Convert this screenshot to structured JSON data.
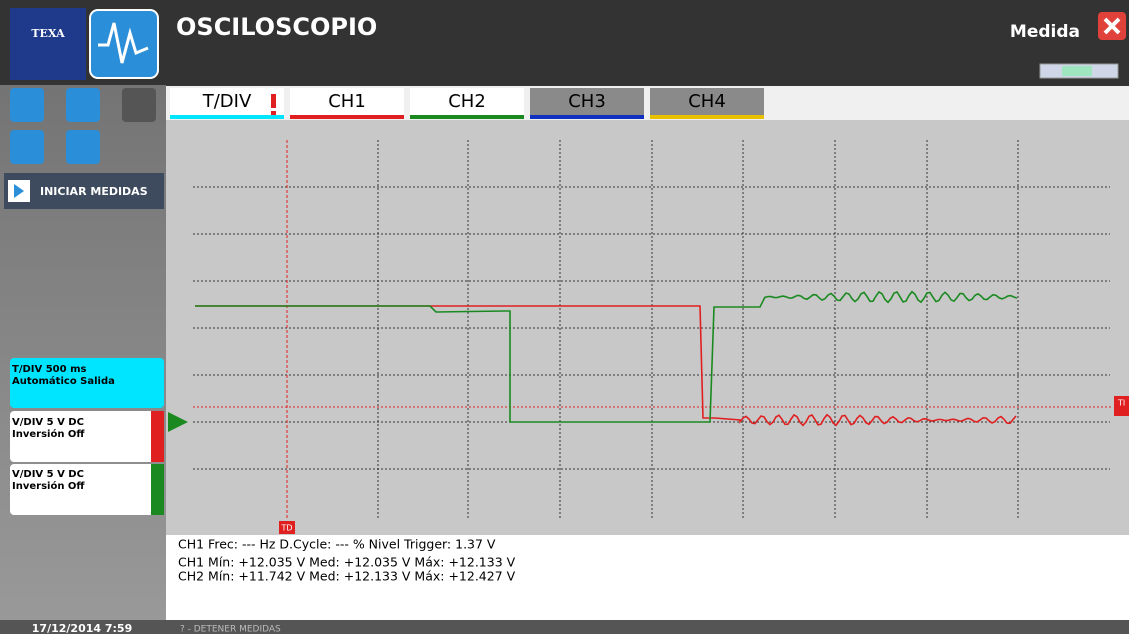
{
  "header": {
    "logo": "TEXA",
    "title": "OSCILOSCOPIO",
    "mode": "Medida"
  },
  "tabs": [
    "T/DIV",
    "CH1",
    "CH2",
    "CH3",
    "CH4"
  ],
  "sidebar": {
    "start_button": "INICIAR MEDIDAS",
    "tdiv": {
      "line1": "T/DIV 500 ms",
      "line2": "Automático Salida"
    },
    "ch1": {
      "line1": "V/DIV 5 V DC",
      "line2": "Inversión Off"
    },
    "ch2": {
      "line1": "V/DIV 5 V DC",
      "line2": "Inversión Off"
    },
    "date": "17/12/2014 7:59"
  },
  "plot": {
    "trigger_marker": "TD",
    "right_marker": "TI"
  },
  "measurements": [
    "CH1 Frec: --- Hz   D.Cycle: --- %   Nivel Trigger: 1.37 V",
    "CH1 Mín: +12.035 V  Med: +12.035 V  Máx: +12.133 V",
    "CH2 Mín: +11.742 V  Med: +12.133 V  Máx: +12.427 V"
  ],
  "status": "? - DETENER MEDIDAS"
}
